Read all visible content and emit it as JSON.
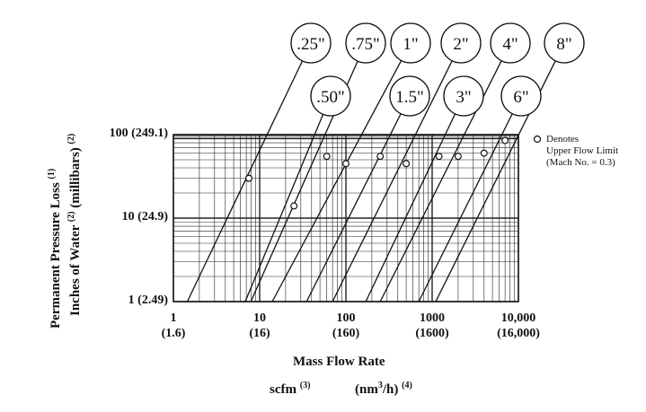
{
  "chart_data": {
    "type": "line",
    "x_scale": "log",
    "y_scale": "log",
    "xlim": [
      1,
      10000
    ],
    "ylim": [
      1,
      100
    ],
    "grid": true,
    "x_ticks": [
      {
        "value": 1,
        "label": "1",
        "sub": "(1.6)"
      },
      {
        "value": 10,
        "label": "10",
        "sub": "(16)"
      },
      {
        "value": 100,
        "label": "100",
        "sub": "(160)"
      },
      {
        "value": 1000,
        "label": "1000",
        "sub": "(1600)"
      },
      {
        "value": 10000,
        "label": "10,000",
        "sub": "(16,000)"
      }
    ],
    "y_ticks": [
      {
        "value": 1,
        "label": "1 (2.49)"
      },
      {
        "value": 10,
        "label": "10 (24.9)"
      },
      {
        "value": 100,
        "label": "100 (249.1)"
      }
    ],
    "xlabel": "Mass Flow Rate",
    "x_units": {
      "scfm": "scfm",
      "scfm_sup": "(3)",
      "nm3": "(nm",
      "nm3_sup3": "3",
      "nm3_tail": "/h)",
      "nm3_sup": "(4)"
    },
    "ylabel": {
      "line1": "Permanent Pressure Loss",
      "line1_sup": "(1)",
      "line2": "Inches of Water",
      "line2_sup": "(2)",
      "line2_tail": "(millibars)",
      "line2_sup2": "(2)"
    },
    "legend": {
      "symbol": "o",
      "line1": "Denotes",
      "line2": "Upper Flow Limit",
      "line3": "(Mach No. = 0.3)"
    },
    "series": [
      {
        "name": ".25\"",
        "x_at_y1": 1.45,
        "limit": {
          "x": 7.5,
          "y": 30
        }
      },
      {
        "name": ".50\"",
        "x_at_y1": 6.8,
        "limit": {
          "x": 25,
          "y": 14
        }
      },
      {
        "name": ".75\"",
        "x_at_y1": 7.9,
        "limit": {
          "x": 60,
          "y": 55
        }
      },
      {
        "name": "1\"",
        "x_at_y1": 14,
        "limit": {
          "x": 100,
          "y": 45
        }
      },
      {
        "name": "1.5\"",
        "x_at_y1": 35,
        "limit": {
          "x": 250,
          "y": 55
        }
      },
      {
        "name": "2\"",
        "x_at_y1": 70,
        "limit": {
          "x": 500,
          "y": 45
        }
      },
      {
        "name": "3\"",
        "x_at_y1": 170,
        "limit": {
          "x": 1200,
          "y": 55
        }
      },
      {
        "name": "4\"",
        "x_at_y1": 250,
        "limit": {
          "x": 2000,
          "y": 55
        }
      },
      {
        "name": "6\"",
        "x_at_y1": 700,
        "limit": {
          "x": 4000,
          "y": 60
        }
      },
      {
        "name": "8\"",
        "x_at_y1": 1100,
        "limit": {
          "x": 7000,
          "y": 85
        }
      }
    ]
  }
}
